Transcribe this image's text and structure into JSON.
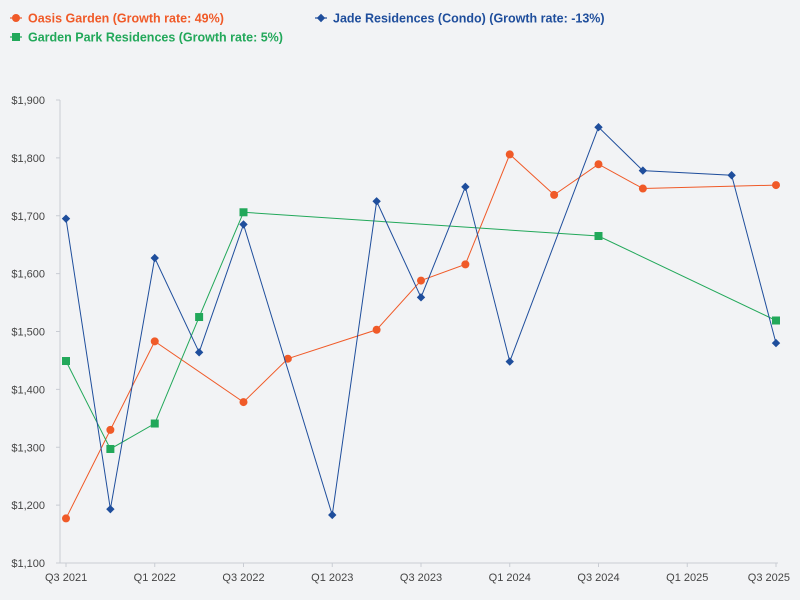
{
  "chart_data": {
    "type": "line",
    "title": "",
    "xlabel": "",
    "ylabel": "",
    "ylim": [
      1100,
      1900
    ],
    "y_ticks": [
      1100,
      1200,
      1300,
      1400,
      1500,
      1600,
      1700,
      1800,
      1900
    ],
    "y_tick_labels": [
      "$1,100",
      "$1,200",
      "$1,300",
      "$1,400",
      "$1,500",
      "$1,600",
      "$1,700",
      "$1,800",
      "$1,900"
    ],
    "xlim": [
      0,
      16
    ],
    "x_tick_positions": [
      0,
      2,
      4,
      6,
      8,
      10,
      12,
      14,
      16
    ],
    "x_tick_labels": [
      "Q3 2021",
      "Q1 2022",
      "Q3 2022",
      "Q1 2023",
      "Q3 2023",
      "Q1 2024",
      "Q3 2024",
      "Q1 2025",
      "Q3 2025"
    ],
    "grid": false,
    "series": [
      {
        "name": "Oasis Garden (Growth rate: 49%)",
        "color": "#f05a28",
        "marker": "circle",
        "x": [
          0,
          1,
          2,
          4,
          5,
          7,
          8,
          9,
          10,
          11,
          12,
          13,
          16
        ],
        "values": [
          1177,
          1330,
          1483,
          1378,
          1453,
          1503,
          1588,
          1616,
          1806,
          1736,
          1789,
          1747,
          1753
        ]
      },
      {
        "name": "Garden Park Residences (Growth rate: 5%)",
        "color": "#22a85a",
        "marker": "square",
        "x": [
          0,
          1,
          2,
          3,
          4,
          12,
          16
        ],
        "values": [
          1449,
          1297,
          1341,
          1525,
          1706,
          1665,
          1519
        ]
      },
      {
        "name": "Jade Residences (Condo) (Growth rate: -13%)",
        "color": "#1f4e9c",
        "marker": "diamond",
        "x": [
          0,
          1,
          2,
          3,
          4,
          6,
          7,
          8,
          9,
          10,
          12,
          13,
          15,
          16
        ],
        "values": [
          1695,
          1193,
          1627,
          1464,
          1685,
          1183,
          1725,
          1559,
          1750,
          1448,
          1853,
          1778,
          1770,
          1480
        ]
      }
    ]
  }
}
